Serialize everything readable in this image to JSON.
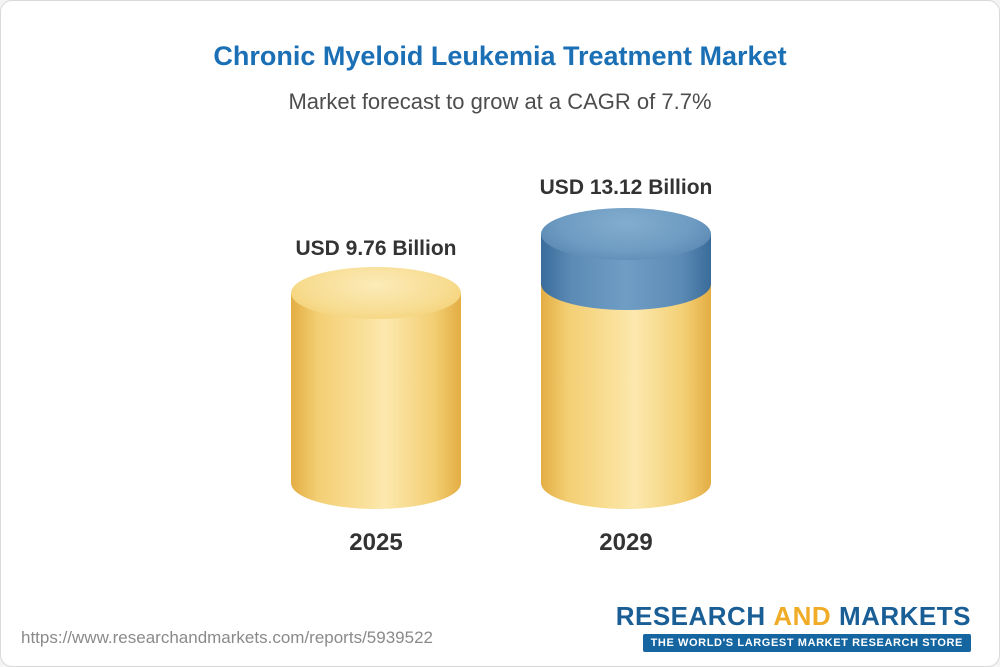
{
  "header": {
    "title": "Chronic Myeloid Leukemia Treatment Market",
    "subtitle": "Market forecast to grow at a CAGR of 7.7%"
  },
  "chart_data": {
    "type": "bar",
    "title": "Chronic Myeloid Leukemia Treatment Market",
    "subtitle": "Market forecast to grow at a CAGR of 7.7%",
    "categories": [
      "2025",
      "2029"
    ],
    "values": [
      9.76,
      13.12
    ],
    "unit": "USD Billion",
    "cagr_percent": 7.7,
    "legend": "off",
    "grid": "off",
    "bars": [
      {
        "year": "2025",
        "value": 9.76,
        "label": "USD 9.76 Billion",
        "color": "#F5D77F"
      },
      {
        "year": "2029",
        "value": 13.12,
        "label": "USD 13.12 Billion",
        "base_color": "#F5D77F",
        "growth_segment_color": "#5D8CB6"
      }
    ]
  },
  "footer": {
    "url": "https://www.researchandmarkets.com/reports/5939522",
    "logo": {
      "research": "RESEARCH",
      "and": "AND",
      "markets": "MARKETS",
      "tagline": "THE WORLD'S LARGEST MARKET RESEARCH STORE"
    }
  },
  "colors": {
    "title_blue": "#1A6FB5",
    "bar_yellow": "#F5D77F",
    "bar_blue": "#5D8CB6",
    "logo_blue": "#1A5E96",
    "logo_orange": "#F0AC27",
    "tagline_bg": "#1465A0"
  }
}
